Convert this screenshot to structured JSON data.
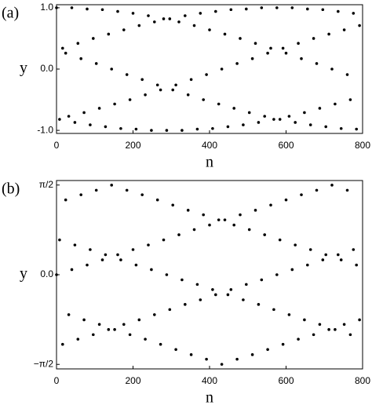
{
  "chart_data": [
    {
      "type": "scatter",
      "panel_label": "(a)",
      "xlabel": "n",
      "ylabel": "y",
      "color": "#000000",
      "xlim": [
        0,
        800
      ],
      "xticks": [
        0,
        200,
        400,
        600,
        800
      ],
      "ylim": [
        -1.05,
        1.05
      ],
      "yticks": [
        {
          "value": -1,
          "label": "-1.0"
        },
        {
          "value": 0,
          "label": "0.0"
        },
        {
          "value": 1,
          "label": "1.0"
        }
      ],
      "x": [
        0,
        8,
        16,
        24,
        32,
        40,
        48,
        56,
        64,
        72,
        80,
        88,
        96,
        104,
        112,
        120,
        128,
        136,
        144,
        152,
        160,
        168,
        176,
        184,
        192,
        200,
        208,
        216,
        224,
        232,
        240,
        248,
        256,
        264,
        272,
        280,
        288,
        296,
        304,
        312,
        320,
        328,
        336,
        344,
        352,
        360,
        368,
        376,
        384,
        392,
        400,
        408,
        416,
        424,
        432,
        440,
        448,
        456,
        464,
        472,
        480,
        488,
        496,
        504,
        512,
        520,
        528,
        536,
        544,
        552,
        560,
        568,
        576,
        584,
        592,
        600,
        608,
        616,
        624,
        632,
        640,
        648,
        656,
        664,
        672,
        680,
        688,
        696,
        704,
        712,
        720,
        728,
        736,
        744,
        752,
        760,
        768,
        776,
        784,
        792
      ],
      "values": [
        1,
        -0.82,
        0.34,
        0.26,
        -0.77,
        1,
        -0.87,
        0.42,
        0.17,
        -0.71,
        0.98,
        -0.91,
        0.5,
        0.09,
        -0.64,
        0.97,
        -0.94,
        0.57,
        0,
        -0.57,
        0.94,
        -0.97,
        0.64,
        -0.09,
        -0.5,
        0.91,
        -0.98,
        0.71,
        -0.17,
        -0.42,
        0.87,
        -1,
        0.77,
        -0.26,
        -0.34,
        0.82,
        -1,
        0.82,
        -0.34,
        -0.26,
        0.77,
        -1,
        0.87,
        -0.42,
        -0.17,
        0.71,
        -0.98,
        0.91,
        -0.5,
        -0.09,
        0.64,
        -0.97,
        0.94,
        -0.57,
        0,
        0.57,
        -0.94,
        0.97,
        -0.64,
        0.09,
        0.5,
        -0.91,
        0.98,
        -0.71,
        0.17,
        0.42,
        -0.87,
        1,
        -0.77,
        0.26,
        0.34,
        -0.82,
        1,
        -0.82,
        0.34,
        0.26,
        -0.77,
        1,
        -0.87,
        0.42,
        0.17,
        -0.71,
        0.98,
        -0.91,
        0.5,
        0.09,
        -0.64,
        0.97,
        -0.94,
        0.57,
        0,
        -0.57,
        0.94,
        -0.97,
        0.64,
        -0.09,
        -0.5,
        0.91,
        -0.98,
        0.71
      ]
    },
    {
      "type": "scatter",
      "panel_label": "(b)",
      "xlabel": "n",
      "ylabel": "y",
      "color": "#000000",
      "xlim": [
        0,
        800
      ],
      "xticks": [
        0,
        200,
        400,
        600,
        800
      ],
      "ylim": [
        -1.65,
        1.65
      ],
      "yticks": [
        {
          "value": -1.5708,
          "label": "−π/2"
        },
        {
          "value": 0,
          "label": "0.0"
        },
        {
          "value": 1.5708,
          "label": "π/2"
        }
      ],
      "x": [
        0,
        8,
        16,
        24,
        32,
        40,
        48,
        56,
        64,
        72,
        80,
        88,
        96,
        104,
        112,
        120,
        128,
        136,
        144,
        152,
        160,
        168,
        176,
        184,
        192,
        200,
        208,
        216,
        224,
        232,
        240,
        248,
        256,
        264,
        272,
        280,
        288,
        296,
        304,
        312,
        320,
        328,
        336,
        344,
        352,
        360,
        368,
        376,
        384,
        392,
        400,
        408,
        416,
        424,
        432,
        440,
        448,
        456,
        464,
        472,
        480,
        488,
        496,
        504,
        512,
        520,
        528,
        536,
        544,
        552,
        560,
        568,
        576,
        584,
        592,
        600,
        608,
        616,
        624,
        632,
        640,
        648,
        656,
        664,
        672,
        680,
        688,
        696,
        704,
        712,
        720,
        728,
        736,
        744,
        752,
        760,
        768,
        776,
        784,
        792
      ],
      "values": [
        0,
        0.61,
        -1.22,
        1.31,
        -0.7,
        0.09,
        0.52,
        -1.13,
        1.4,
        -0.79,
        0.17,
        0.44,
        -1.05,
        1.48,
        -0.87,
        0.26,
        0.35,
        -0.96,
        1.57,
        -0.96,
        0.35,
        0.26,
        -0.87,
        1.48,
        -1.05,
        0.44,
        0.17,
        -0.79,
        1.4,
        -1.13,
        0.52,
        0.09,
        -0.7,
        1.31,
        -1.22,
        0.61,
        0,
        -0.61,
        1.22,
        -1.31,
        0.7,
        -0.09,
        -0.52,
        1.13,
        -1.4,
        0.79,
        -0.17,
        -0.44,
        1.05,
        -1.48,
        0.87,
        -0.26,
        -0.35,
        0.96,
        -1.57,
        0.96,
        -0.35,
        -0.26,
        0.87,
        -1.48,
        1.05,
        -0.44,
        -0.17,
        0.79,
        -1.4,
        1.13,
        -0.52,
        -0.09,
        0.7,
        -1.31,
        1.22,
        -0.61,
        0,
        0.61,
        -1.22,
        1.31,
        -0.7,
        0.09,
        0.52,
        -1.13,
        1.4,
        -0.79,
        0.17,
        0.44,
        -1.05,
        1.48,
        -0.87,
        0.26,
        0.35,
        -0.96,
        1.57,
        -0.96,
        0.35,
        0.26,
        -0.87,
        1.48,
        -1.05,
        0.44,
        0.17,
        -0.79
      ]
    }
  ]
}
